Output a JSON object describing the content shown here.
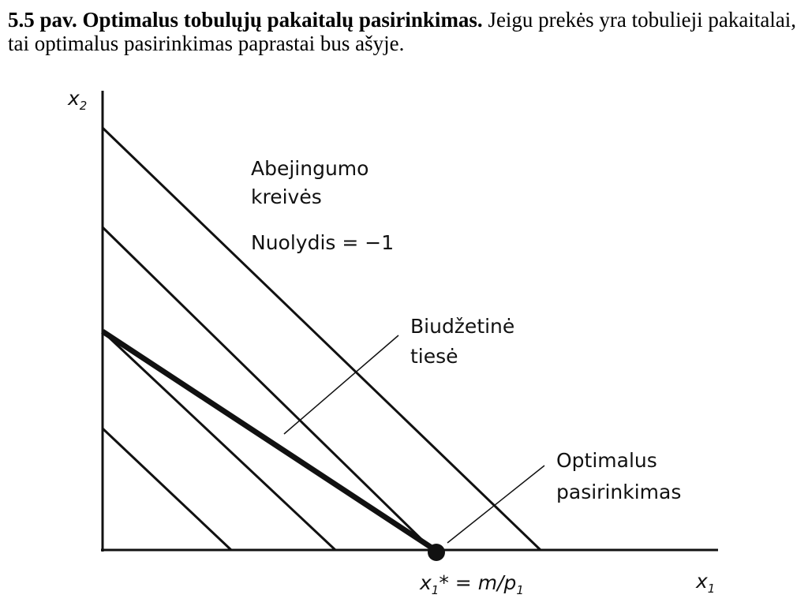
{
  "caption": {
    "figure": "5.5 pav. Optimalus tobulųjų pakaitalų pasirinkimas.",
    "text": "Jeigu prekės yra tobulieji pakaitalai, tai optimalus pasirinkimas paprastai bus ašyje."
  },
  "diagram": {
    "y_axis": {
      "symbol": "x",
      "sub": "2"
    },
    "x_axis": {
      "symbol": "x",
      "sub": "1"
    },
    "optimum_label": {
      "symbol": "x",
      "sub": "1",
      "rest": "* = ",
      "ratio": "m/p",
      "ratio_sub": "1"
    },
    "indifference_label": [
      "Abejingumo",
      "kreivės"
    ],
    "slope_label": "Nuolydis = −1",
    "budget_label": [
      "Biudžetinė",
      "tiesė"
    ],
    "optimum_note": [
      "Optimalus",
      "pasirinkimas"
    ]
  }
}
